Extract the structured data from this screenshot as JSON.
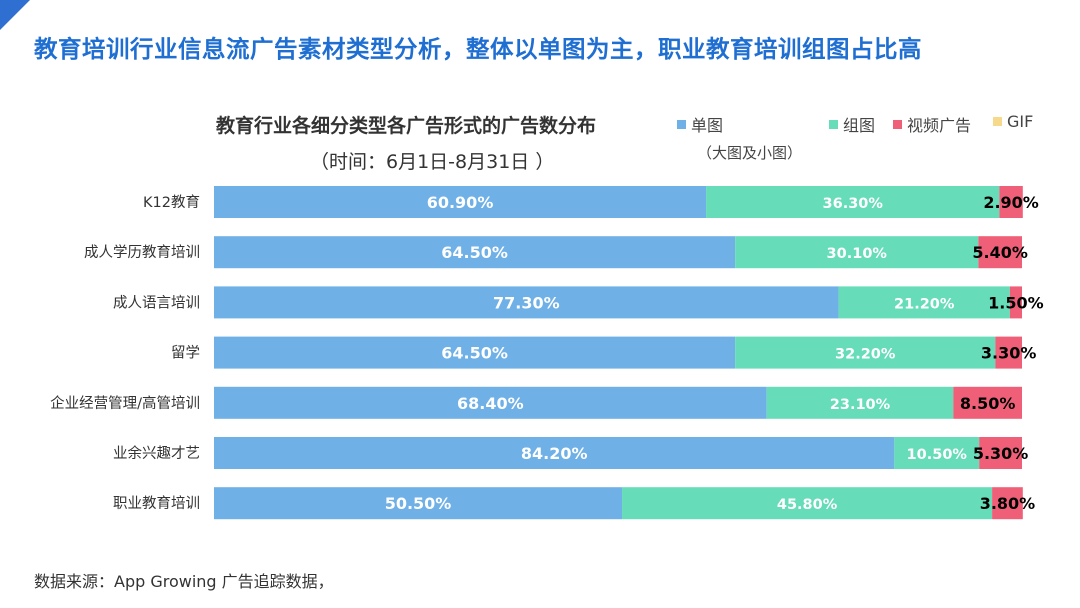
{
  "headline": "教育培训行业信息流广告素材类型分析，整体以单图为主，职业教育培训组图占比高",
  "source_note": "数据来源：App Growing 广告追踪数据，",
  "legend_note": "（大图及小图）",
  "colors": {
    "headline": "#1f6fd2",
    "corner": "#2f6fd1",
    "single": "#6fb0e6",
    "group": "#66dcb8",
    "video": "#f05f78",
    "gif": "#f7d98c"
  },
  "chart_data": {
    "type": "bar",
    "orientation": "horizontal",
    "stacked": true,
    "title": "教育行业各细分类型各广告形式的广告数分布",
    "subtitle": "（时间：6月1日-8月31日 ）",
    "categories": [
      "K12教育",
      "成人学历教育培训",
      "成人语言培训",
      "留学",
      "企业经营管理/高管培训",
      "业余兴趣才艺",
      "职业教育培训"
    ],
    "series": [
      {
        "name": "单图",
        "values": [
          60.9,
          64.5,
          77.3,
          64.5,
          68.4,
          84.2,
          50.5
        ],
        "labels": [
          "60.90%",
          "64.50%",
          "77.30%",
          "64.50%",
          "68.40%",
          "84.20%",
          "50.50%"
        ]
      },
      {
        "name": "组图",
        "values": [
          36.3,
          30.1,
          21.2,
          32.2,
          23.1,
          10.5,
          45.8
        ],
        "labels": [
          "36.30%",
          "30.10%",
          "21.20%",
          "32.20%",
          "23.10%",
          "10.50%",
          "45.80%"
        ]
      },
      {
        "name": "视频广告",
        "values": [
          2.9,
          5.4,
          1.5,
          3.3,
          8.5,
          5.3,
          3.8
        ],
        "labels": [
          "2.90%",
          "5.40%",
          "1.50%",
          "3.30%",
          "8.50%",
          "5.30%",
          "3.80%"
        ]
      },
      {
        "name": "GIF",
        "values": [
          0,
          0,
          0,
          0,
          0,
          0,
          0
        ],
        "labels": [
          "",
          "",
          "",
          "",
          "",
          "",
          ""
        ]
      }
    ],
    "xlim": [
      0,
      100
    ],
    "grid": false,
    "legend_position": "top-right"
  }
}
